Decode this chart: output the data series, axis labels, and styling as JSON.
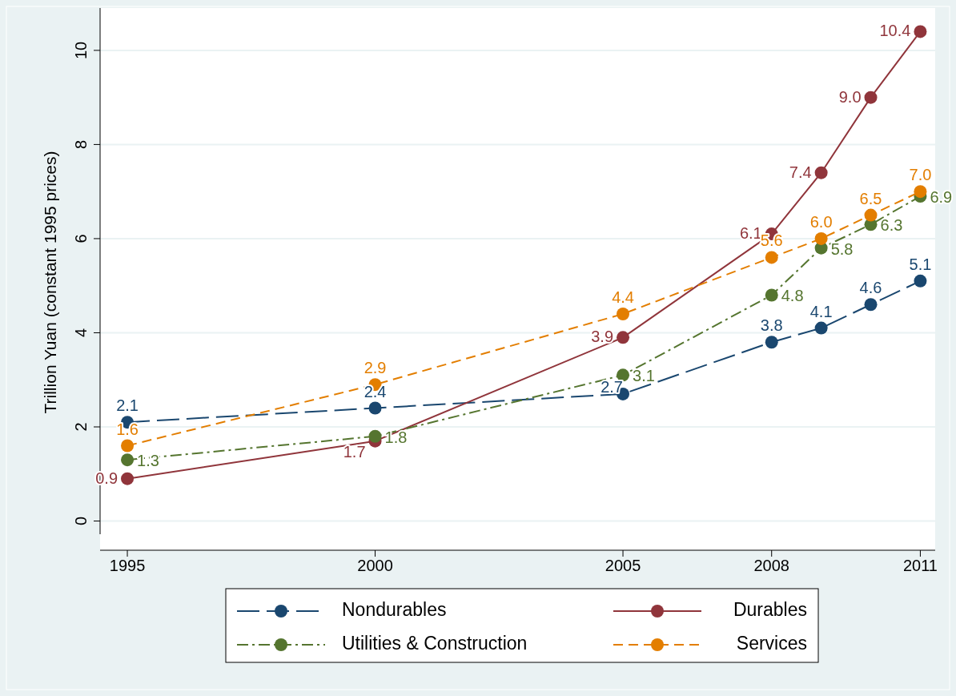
{
  "chart_data": {
    "type": "line",
    "ylabel": "Trillion Yuan (constant 1995 prices)",
    "x": [
      1995,
      2000,
      2005,
      2008,
      2009,
      2010,
      2011
    ],
    "xlim": [
      1994.45,
      2011.3
    ],
    "xticks": [
      1995,
      2000,
      2005,
      2008,
      2011
    ],
    "ylim": [
      -0.28,
      10.9
    ],
    "yticks": [
      0,
      2,
      4,
      6,
      8,
      10
    ],
    "grid": "y",
    "legend": "bottom",
    "marker": "circle",
    "series": [
      {
        "name": "Nondurables",
        "color": "#1a476f",
        "line_style": "dashed",
        "values": [
          2.1,
          2.4,
          2.7,
          3.8,
          4.1,
          4.6,
          5.1
        ],
        "value_labels": [
          "2.1",
          "2.4",
          "2.7",
          "3.8",
          "4.1",
          "4.6",
          "5.1"
        ]
      },
      {
        "name": "Durables",
        "color": "#90353b",
        "line_style": "solid",
        "values": [
          0.9,
          1.7,
          3.9,
          6.1,
          7.4,
          9.0,
          10.4
        ],
        "value_labels": [
          "0.9",
          "1.7",
          "3.9",
          "6.1",
          "7.4",
          "9.0",
          "10.4"
        ]
      },
      {
        "name": "Utilities & Construction",
        "color": "#55752f",
        "line_style": "dashed",
        "values": [
          1.3,
          1.8,
          3.1,
          4.8,
          5.8,
          6.3,
          6.9
        ],
        "value_labels": [
          "1.3",
          "1.8",
          "3.1",
          "4.8",
          "5.8",
          "6.3",
          "6.9"
        ]
      },
      {
        "name": "Services",
        "color": "#e37e00",
        "line_style": "dashed",
        "values": [
          1.6,
          2.9,
          4.4,
          5.6,
          6.0,
          6.5,
          7.0
        ],
        "value_labels": [
          "1.6",
          "2.9",
          "4.4",
          "5.6",
          "6.0",
          "6.5",
          "7.0"
        ]
      }
    ]
  }
}
